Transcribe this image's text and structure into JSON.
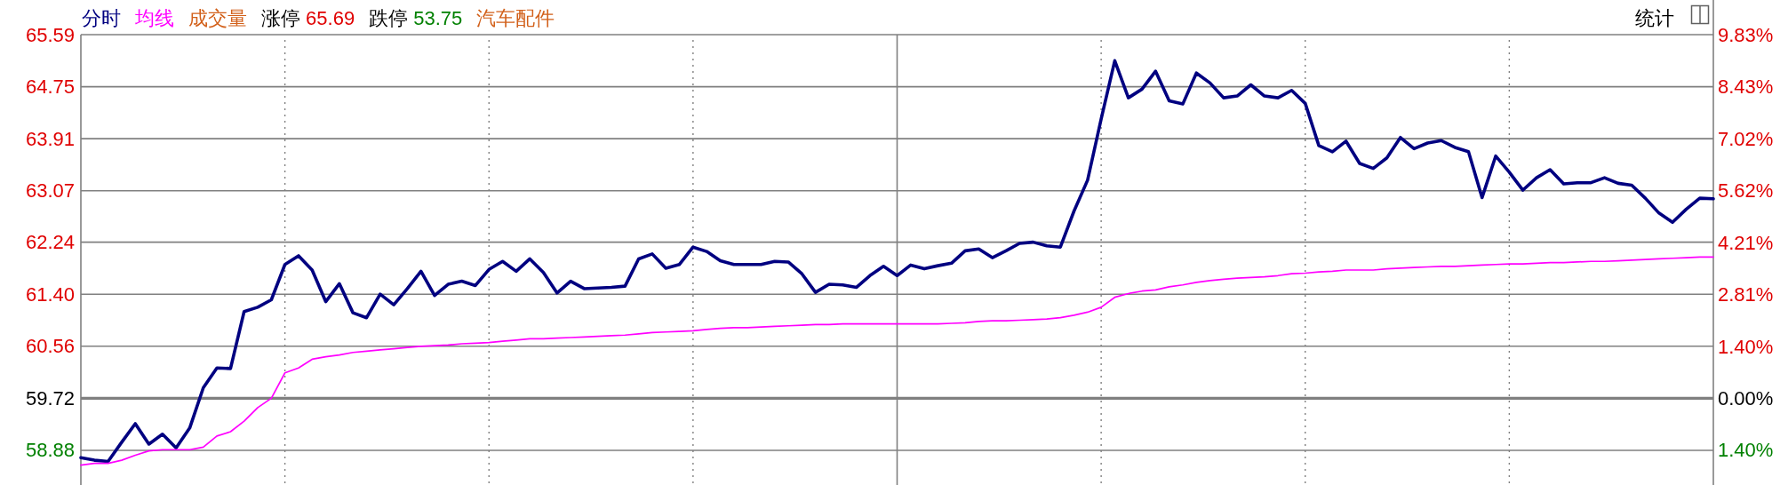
{
  "chart_data": {
    "type": "line",
    "categories": [
      null,
      null,
      null,
      null,
      null,
      null,
      null,
      null,
      null,
      null,
      null,
      null,
      null,
      null,
      null,
      null,
      null,
      null,
      null,
      null,
      null,
      null,
      null,
      null,
      null,
      null,
      null,
      null,
      null,
      null,
      null,
      null,
      null,
      null,
      null,
      null,
      null,
      null,
      null,
      null,
      null,
      null,
      null,
      null,
      null,
      null,
      null,
      null,
      null,
      null,
      null,
      null,
      null,
      null,
      null,
      null,
      null,
      null,
      null,
      null,
      null,
      null,
      null,
      null,
      null,
      null,
      null,
      null,
      null,
      null,
      null,
      null,
      null,
      null,
      null,
      null,
      null,
      null,
      null,
      null,
      null,
      null,
      null,
      null,
      null,
      null,
      null,
      null,
      null,
      null,
      null,
      null,
      null,
      null,
      null,
      null,
      null,
      null,
      null,
      null,
      null,
      null,
      null,
      null,
      null,
      null,
      null,
      null,
      null,
      null,
      null,
      null,
      null,
      null,
      null,
      null,
      null,
      null,
      null,
      null,
      null
    ],
    "series": [
      {
        "name": "分时",
        "color": "#000080",
        "values": [
          58.76,
          58.72,
          58.7,
          59.01,
          59.31,
          58.98,
          59.14,
          58.92,
          59.24,
          59.89,
          60.21,
          60.2,
          61.12,
          61.19,
          61.31,
          61.88,
          62.02,
          61.79,
          61.28,
          61.57,
          61.1,
          61.02,
          61.4,
          61.23,
          61.49,
          61.77,
          61.38,
          61.56,
          61.61,
          61.54,
          61.8,
          61.93,
          61.77,
          61.97,
          61.75,
          61.42,
          61.61,
          61.49,
          61.5,
          61.51,
          61.53,
          61.97,
          62.05,
          61.82,
          61.88,
          62.16,
          62.09,
          61.94,
          61.88,
          61.88,
          61.88,
          61.93,
          61.92,
          61.73,
          61.43,
          61.56,
          61.55,
          61.51,
          61.7,
          61.85,
          61.7,
          61.87,
          61.81,
          61.86,
          61.9,
          62.1,
          62.13,
          61.99,
          62.1,
          62.22,
          62.24,
          62.18,
          62.16,
          62.74,
          63.24,
          64.23,
          65.17,
          64.57,
          64.71,
          65.0,
          64.52,
          64.47,
          64.97,
          64.81,
          64.57,
          64.6,
          64.78,
          64.6,
          64.57,
          64.69,
          64.48,
          63.8,
          63.7,
          63.87,
          63.51,
          63.43,
          63.6,
          63.93,
          63.75,
          63.84,
          63.88,
          63.77,
          63.7,
          62.96,
          63.63,
          63.37,
          63.08,
          63.28,
          63.41,
          63.18,
          63.2,
          63.2,
          63.28,
          63.19,
          63.16,
          62.95,
          62.71,
          62.56,
          62.77,
          62.95,
          62.94
        ]
      },
      {
        "name": "均线",
        "color": "#ff00ff",
        "values": [
          58.64,
          58.67,
          58.67,
          58.72,
          58.8,
          58.87,
          58.89,
          58.89,
          58.89,
          58.93,
          59.11,
          59.18,
          59.35,
          59.57,
          59.72,
          60.13,
          60.21,
          60.35,
          60.39,
          60.42,
          60.46,
          60.48,
          60.5,
          60.52,
          60.54,
          60.56,
          60.57,
          60.58,
          60.6,
          60.61,
          60.62,
          60.64,
          60.66,
          60.68,
          60.68,
          60.69,
          60.7,
          60.71,
          60.72,
          60.73,
          60.74,
          60.76,
          60.78,
          60.79,
          60.8,
          60.81,
          60.83,
          60.85,
          60.86,
          60.86,
          60.87,
          60.88,
          60.89,
          60.9,
          60.91,
          60.91,
          60.92,
          60.92,
          60.92,
          60.92,
          60.92,
          60.92,
          60.92,
          60.92,
          60.93,
          60.94,
          60.96,
          60.97,
          60.97,
          60.98,
          60.99,
          61.0,
          61.02,
          61.06,
          61.11,
          61.19,
          61.35,
          61.41,
          61.45,
          61.47,
          61.52,
          61.55,
          61.59,
          61.62,
          61.64,
          61.66,
          61.67,
          61.68,
          61.7,
          61.73,
          61.74,
          61.76,
          61.77,
          61.79,
          61.79,
          61.79,
          61.81,
          61.82,
          61.83,
          61.84,
          61.85,
          61.85,
          61.86,
          61.87,
          61.88,
          61.89,
          61.89,
          61.9,
          61.91,
          61.91,
          61.92,
          61.93,
          61.93,
          61.94,
          61.95,
          61.96,
          61.97,
          61.98,
          61.99,
          62.0,
          62.0
        ]
      }
    ],
    "ylim": [
      58.32,
      65.59
    ],
    "yticks": [
      58.88,
      59.72,
      60.56,
      {
        "value": 61.4,
        "label": "61.40"
      },
      62.24,
      63.07,
      63.91,
      64.75,
      65.59
    ],
    "y2lim": [
      -2.34,
      9.83
    ],
    "y2ticks": [
      {
        "value": -1.4,
        "label": "1.40%"
      },
      {
        "value": 0,
        "label": "0.00%"
      },
      {
        "value": 1.4,
        "label": "1.40%"
      },
      {
        "value": 2.81,
        "label": "2.81%"
      },
      {
        "value": 4.21,
        "label": "4.21%"
      },
      {
        "value": 5.62,
        "label": "5.62%"
      },
      {
        "value": 7.02,
        "label": "7.02%"
      },
      {
        "value": 8.43,
        "label": "8.43%"
      },
      {
        "value": 9.83,
        "label": "9.83%"
      }
    ],
    "ref_lines": [
      {
        "axis": "y",
        "value": 59.72,
        "color": "#808080"
      }
    ],
    "grid": true,
    "legend": "top left",
    "line_style": "solid",
    "annotations": [
      "成交量",
      "涨停 65.69",
      "跌停 53.75",
      "汽车配件",
      "统计"
    ]
  }
}
